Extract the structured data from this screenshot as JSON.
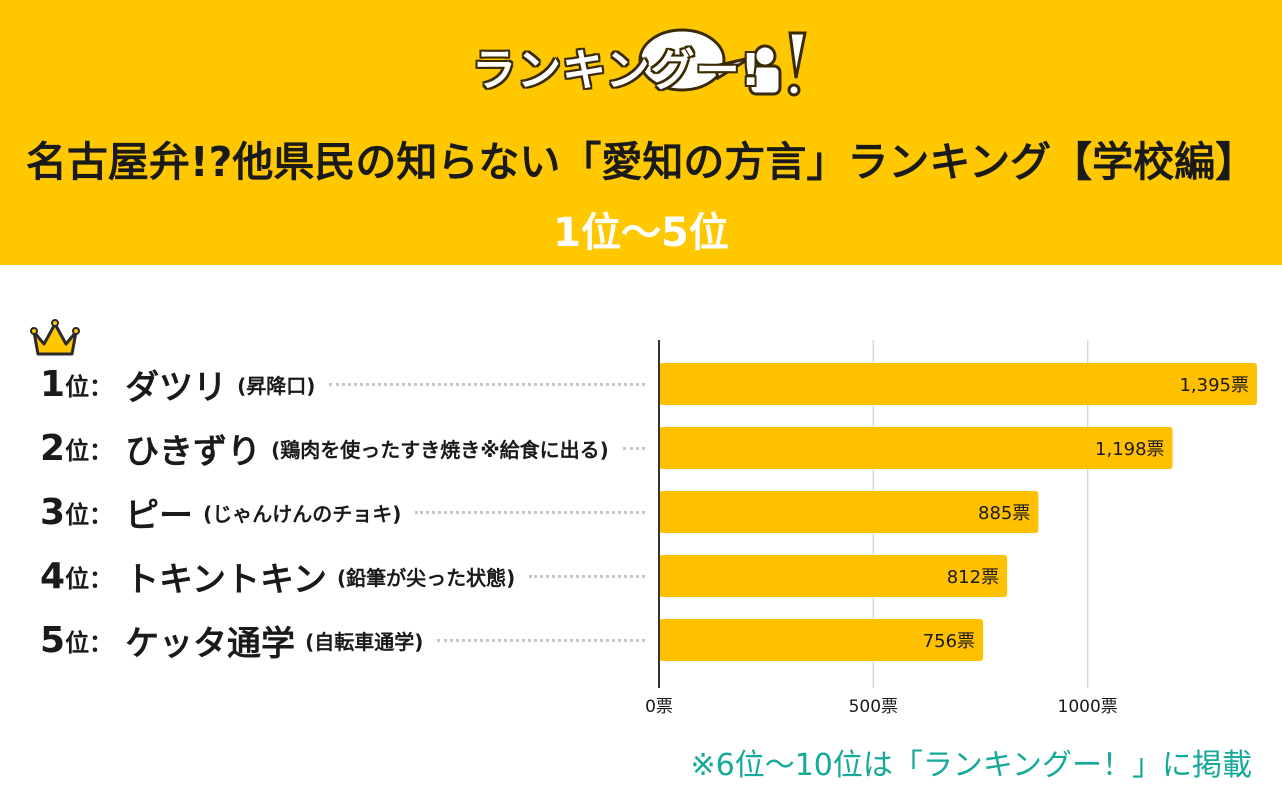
{
  "header": {
    "logo_text": "ランキングー!",
    "title": "名古屋弁!?他県民の知らない「愛知の方言」ランキング【学校編】",
    "subtitle": "1位〜5位"
  },
  "colors": {
    "header_bg": "#FFC800",
    "bar": "#FFC000",
    "footnote": "#14A99A",
    "axis": "#333333",
    "grid": "#d9d9d9"
  },
  "footnote": "※6位〜10位は「ランキングー！」に掲載",
  "chart_data": {
    "type": "bar",
    "orientation": "horizontal",
    "categories": [
      "ダツリ",
      "ひきずり",
      "ピー",
      "トキントキン",
      "ケッタ通学"
    ],
    "values": [
      1395,
      1198,
      885,
      812,
      756
    ],
    "data_labels": [
      "1,395票",
      "1,198票",
      "885票",
      "812票",
      "756票"
    ],
    "xlim": [
      0,
      1395
    ],
    "xticks": [
      0,
      500,
      1000
    ],
    "xtick_labels": [
      "0票",
      "500票",
      "1000票"
    ],
    "grid": true,
    "rows": [
      {
        "rank": "1",
        "suffix": "位：",
        "name": "ダツリ",
        "desc": "(昇降口)"
      },
      {
        "rank": "2",
        "suffix": "位：",
        "name": "ひきずり",
        "desc": "(鶏肉を使ったすき焼き※給食に出る)"
      },
      {
        "rank": "3",
        "suffix": "位：",
        "name": "ピー",
        "desc": "(じゃんけんのチョキ)"
      },
      {
        "rank": "4",
        "suffix": "位：",
        "name": "トキントキン",
        "desc": "(鉛筆が尖った状態)"
      },
      {
        "rank": "5",
        "suffix": "位：",
        "name": "ケッタ通学",
        "desc": "(自転車通学)"
      }
    ]
  }
}
